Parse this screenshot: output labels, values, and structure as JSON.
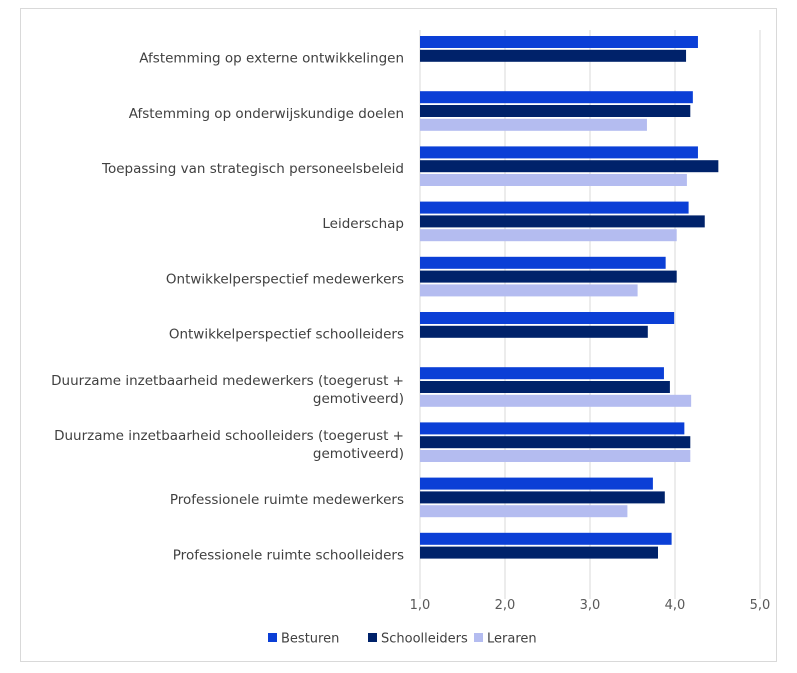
{
  "chart_data": {
    "type": "bar",
    "orientation": "horizontal",
    "categories": [
      [
        "Afstemming op externe ontwikkelingen"
      ],
      [
        "Afstemming op onderwijskundige doelen"
      ],
      [
        "Toepassing van strategisch personeelsbeleid"
      ],
      [
        "Leiderschap"
      ],
      [
        "Ontwikkelperspectief medewerkers"
      ],
      [
        "Ontwikkelperspectief schoolleiders"
      ],
      [
        "Duurzame inzetbaarheid medewerkers (toegerust +",
        "gemotiveerd)"
      ],
      [
        "Duurzame inzetbaarheid schoolleiders (toegerust +",
        "gemotiveerd)"
      ],
      [
        "Professionele ruimte medewerkers"
      ],
      [
        "Professionele ruimte schoolleiders"
      ]
    ],
    "series": [
      {
        "name": "Besturen",
        "color": "#0B3FD6",
        "values": [
          4.27,
          4.21,
          4.27,
          4.16,
          3.89,
          3.99,
          3.87,
          4.11,
          3.74,
          3.96
        ]
      },
      {
        "name": "Schoolleiders",
        "color": "#00226A",
        "values": [
          4.13,
          4.18,
          4.51,
          4.35,
          4.02,
          3.68,
          3.94,
          4.18,
          3.88,
          3.8
        ]
      },
      {
        "name": "Leraren",
        "color": "#B4BCF0",
        "values": [
          null,
          3.67,
          4.14,
          4.02,
          3.56,
          null,
          4.19,
          4.18,
          3.44,
          null
        ]
      }
    ],
    "xlim": [
      1.0,
      5.0
    ],
    "xticks": [
      "1,0",
      "2,0",
      "3,0",
      "4,0",
      "5,0"
    ],
    "grid": true,
    "legend": "bottom",
    "title": "",
    "xlabel": "",
    "ylabel": ""
  }
}
